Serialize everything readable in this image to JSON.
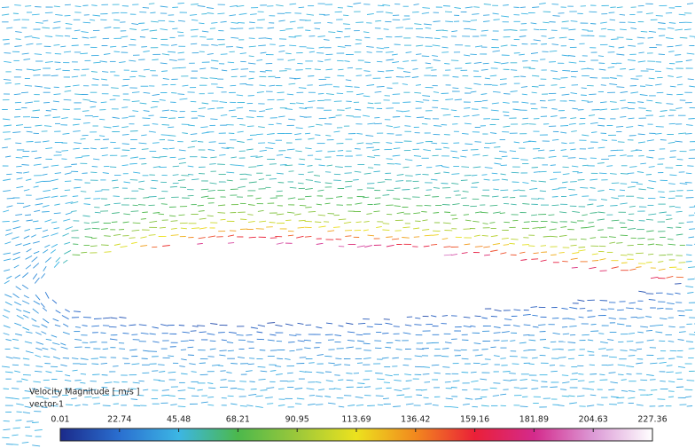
{
  "chart_data": {
    "type": "colorbar",
    "title": "Velocity Magnitude [ m/s ]",
    "subtitle": "vector-1",
    "xlim": [
      0.01,
      227.36
    ],
    "xticks": [
      0.01,
      22.74,
      45.48,
      68.21,
      90.95,
      113.69,
      136.42,
      159.16,
      181.89,
      204.63,
      227.36
    ],
    "colors": [
      "#1b2a8a",
      "#2a6fd0",
      "#3cb6e4",
      "#4cb84c",
      "#9cc83a",
      "#ece21e",
      "#f2881e",
      "#ea2038",
      "#d42a8c",
      "#dc9ad6",
      "#ffffff"
    ]
  }
}
